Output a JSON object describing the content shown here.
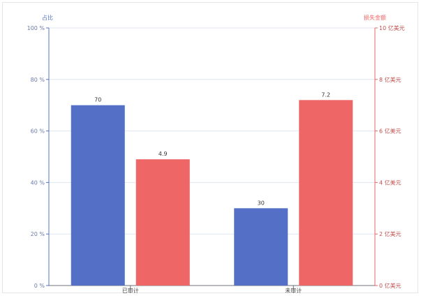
{
  "chart_data": {
    "type": "bar",
    "categories": [
      "已审计",
      "未审计"
    ],
    "series": [
      {
        "values": [
          70,
          30
        ],
        "color": "#5470c6",
        "axis": "left",
        "data_labels": [
          "70",
          "30"
        ]
      },
      {
        "values": [
          4.9,
          7.2
        ],
        "color": "#ee6666",
        "axis": "right",
        "data_labels": [
          "4.9",
          "7.2"
        ]
      }
    ],
    "y_left": {
      "name": "占比",
      "range": [
        0,
        100
      ],
      "ticks": [
        "0 %",
        "20 %",
        "40 %",
        "60 %",
        "80 %",
        "100 %"
      ],
      "color": "#5470c6"
    },
    "y_right": {
      "name": "损失金额",
      "range": [
        0,
        10
      ],
      "ticks": [
        "0 亿美元",
        "2 亿美元",
        "4 亿美元",
        "6 亿美元",
        "8 亿美元",
        "10 亿美元"
      ],
      "color": "#ee6666"
    },
    "grid": true,
    "legend": "none"
  }
}
